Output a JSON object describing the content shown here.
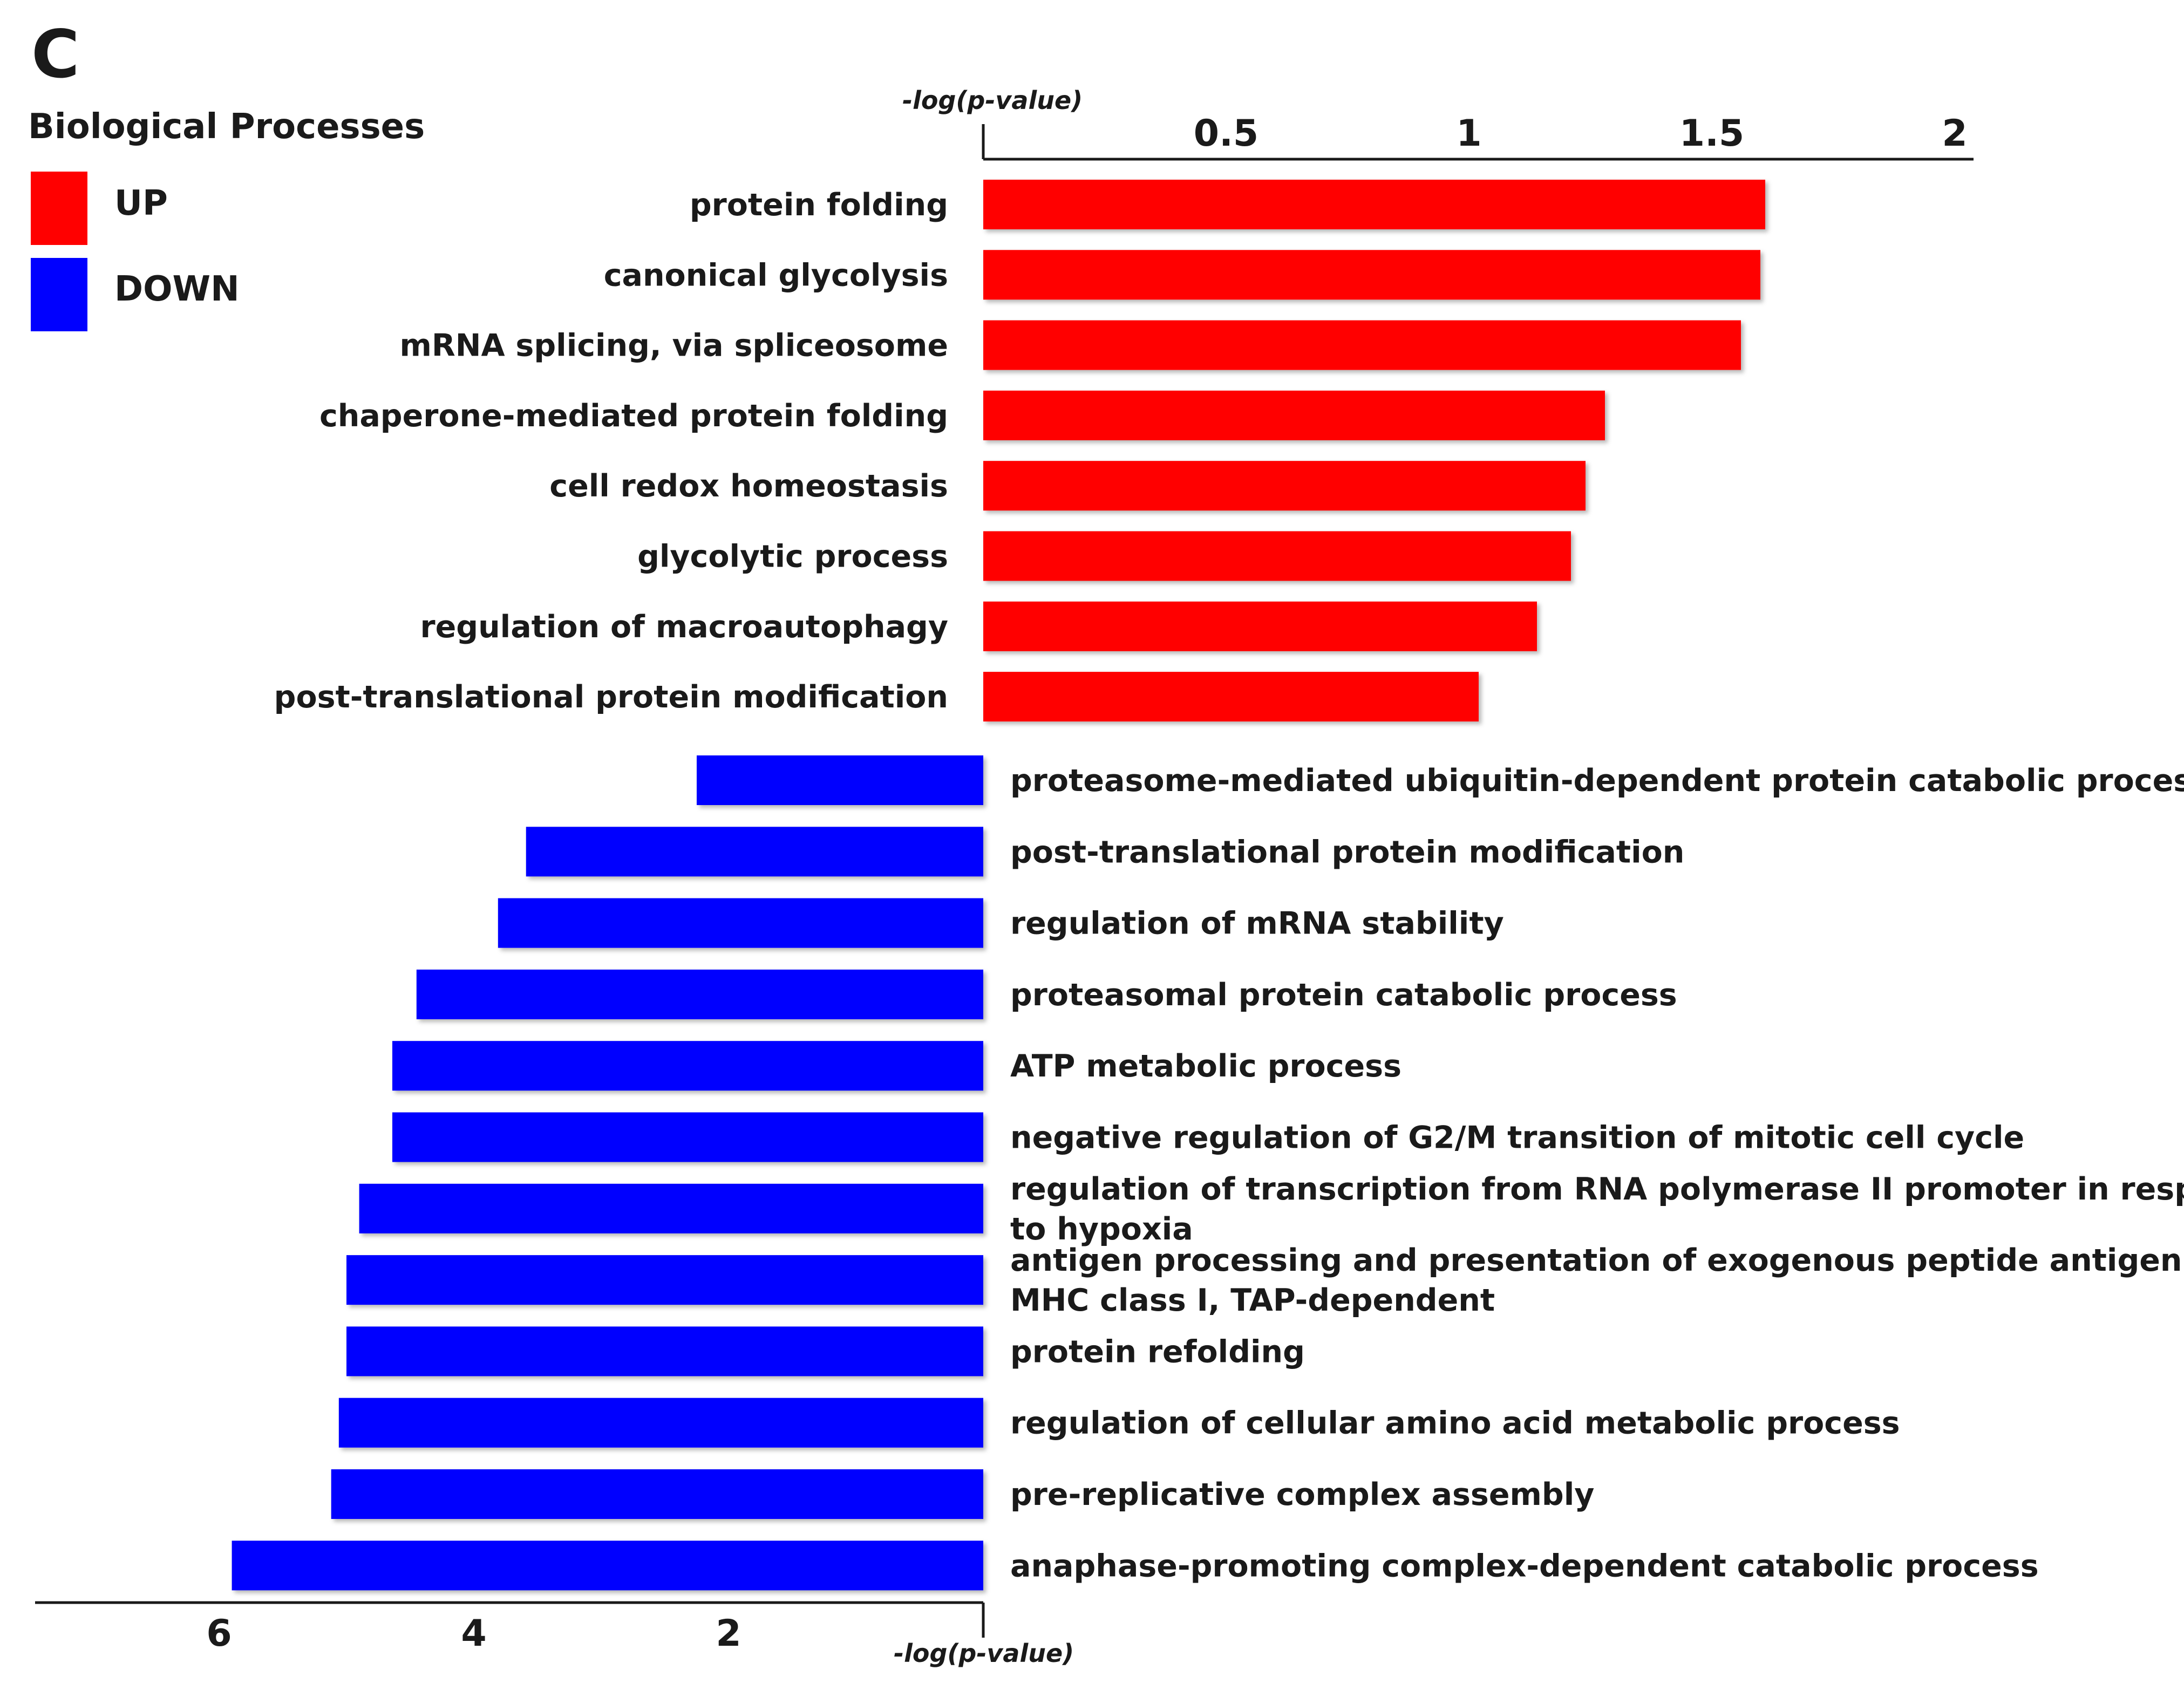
{
  "panel_label": "C",
  "legend": {
    "title": "Biological Processes",
    "items": [
      {
        "label": "UP",
        "color": "#ff0000"
      },
      {
        "label": "DOWN",
        "color": "#0000ff"
      }
    ]
  },
  "chart_data": [
    {
      "type": "bar",
      "orientation": "horizontal",
      "name": "UP",
      "color": "#ff0000",
      "xlabel": "-log(p-value)",
      "axis_position": "top",
      "xlim": [
        0,
        2
      ],
      "ticks": [
        "0.5",
        "1",
        "1.5",
        "2"
      ],
      "tick_values": [
        0.5,
        1,
        1.5,
        2
      ],
      "categories": [
        "protein folding",
        "canonical glycolysis",
        "mRNA splicing, via spliceosome",
        "chaperone-mediated protein folding",
        "cell redox homeostasis",
        "glycolytic process",
        "regulation of macroautophagy",
        "post-translational protein modification"
      ],
      "values": [
        1.61,
        1.6,
        1.56,
        1.28,
        1.24,
        1.21,
        1.14,
        1.02
      ]
    },
    {
      "type": "bar",
      "orientation": "horizontal",
      "direction": "leftward",
      "name": "DOWN",
      "color": "#0000ff",
      "xlabel": "-log(p-value)",
      "axis_position": "bottom",
      "xlim": [
        0,
        7.4
      ],
      "ticks": [
        "2",
        "4",
        "6"
      ],
      "tick_values": [
        2,
        4,
        6
      ],
      "categories": [
        "proteasome-mediated ubiquitin-dependent protein catabolic process",
        "post-translational protein modification",
        "regulation of mRNA stability",
        "proteasomal protein catabolic process",
        "ATP metabolic process",
        "negative regulation of G2/M transition of mitotic cell cycle",
        [
          "regulation of transcription from RNA polymerase II promoter in response",
          "to hypoxia"
        ],
        [
          "antigen processing and presentation of exogenous peptide antigen via",
          "MHC class I, TAP-dependent"
        ],
        "protein refolding",
        "regulation of cellular amino acid metabolic process",
        "pre-replicative complex assembly",
        "anaphase-promoting complex-dependent catabolic process"
      ],
      "values": [
        2.25,
        3.59,
        3.81,
        4.45,
        4.64,
        4.64,
        4.9,
        5.0,
        5.0,
        5.06,
        5.12,
        5.9
      ]
    }
  ]
}
